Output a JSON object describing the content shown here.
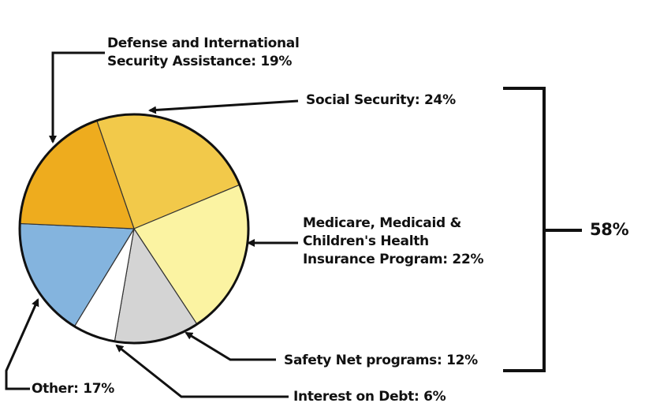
{
  "chart_data": {
    "type": "pie",
    "title": "",
    "slices": [
      {
        "name": "Social Security: 24%",
        "value": 24,
        "color": "#f2c94a"
      },
      {
        "name": "Medicare, Medicaid & Children's Health Insurance Program: 22%",
        "value": 22,
        "color": "#fbf3a2"
      },
      {
        "name": "Safety Net programs: 12%",
        "value": 12,
        "color": "#d4d4d4"
      },
      {
        "name": "Interest on Debt: 6%",
        "value": 6,
        "color": "#ffffff"
      },
      {
        "name": "Other: 17%",
        "value": 17,
        "color": "#84b4de"
      },
      {
        "name": "Defense and International Security Assistance: 19%",
        "value": 19,
        "color": "#eeac1e"
      }
    ],
    "labels": {
      "defense": [
        "Defense and International",
        "Security Assistance: 19%"
      ],
      "social_security": "Social Security: 24%",
      "medicare": [
        "Medicare, Medicaid &",
        "Children's Health",
        "Insurance Program: 22%"
      ],
      "safety_net": "Safety Net programs: 12%",
      "interest": "Interest on Debt: 6%",
      "other": "Other: 17%"
    },
    "bracket": {
      "value": 58,
      "label": "58%",
      "covers": [
        "Social Security: 24%",
        "Medicare, Medicaid & Children's Health Insurance Program: 22%",
        "Safety Net programs: 12%"
      ]
    }
  }
}
